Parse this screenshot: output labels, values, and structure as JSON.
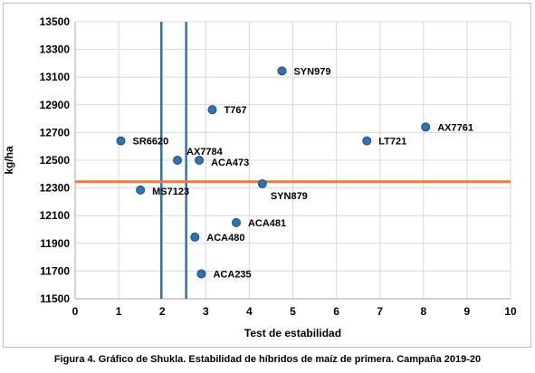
{
  "caption": "Figura  4. Gráfico de Shukla. Estabilidad de híbridos de maíz de primera. Campaña 2019-20",
  "chart_data": {
    "type": "scatter",
    "xlabel": "Test de estabilidad",
    "ylabel": "kg/ha",
    "xlim": [
      0,
      10
    ],
    "ylim": [
      11500,
      13500
    ],
    "xticks": [
      "0",
      "1",
      "2",
      "3",
      "4",
      "5",
      "6",
      "7",
      "8",
      "9",
      "10"
    ],
    "yticks": [
      "11500",
      "11700",
      "11900",
      "12100",
      "12300",
      "12500",
      "12700",
      "12900",
      "13100",
      "13300",
      "13500"
    ],
    "grid": true,
    "point_color": "#2e74b5",
    "points": [
      {
        "label": "SR6620",
        "x": 1.05,
        "y": 12640
      },
      {
        "label": "MS7123",
        "x": 1.5,
        "y": 12285
      },
      {
        "label": "AX7784",
        "x": 2.35,
        "y": 12500
      },
      {
        "label": "ACA473",
        "x": 2.85,
        "y": 12500
      },
      {
        "label": "T767",
        "x": 3.15,
        "y": 12865
      },
      {
        "label": "ACA480",
        "x": 2.75,
        "y": 11945
      },
      {
        "label": "ACA235",
        "x": 2.9,
        "y": 11680
      },
      {
        "label": "ACA481",
        "x": 3.7,
        "y": 12050
      },
      {
        "label": "SYN879",
        "x": 4.3,
        "y": 12330
      },
      {
        "label": "SYN979",
        "x": 4.75,
        "y": 13145
      },
      {
        "label": "LT721",
        "x": 6.7,
        "y": 12640
      },
      {
        "label": "AX7761",
        "x": 8.05,
        "y": 12740
      }
    ],
    "reference_lines": [
      {
        "orientation": "vertical",
        "value": 1.98,
        "color": "#2e74b5"
      },
      {
        "orientation": "vertical",
        "value": 2.55,
        "color": "#2e74b5"
      },
      {
        "orientation": "horizontal",
        "value": 12345,
        "color": "#ed7d31"
      }
    ]
  }
}
